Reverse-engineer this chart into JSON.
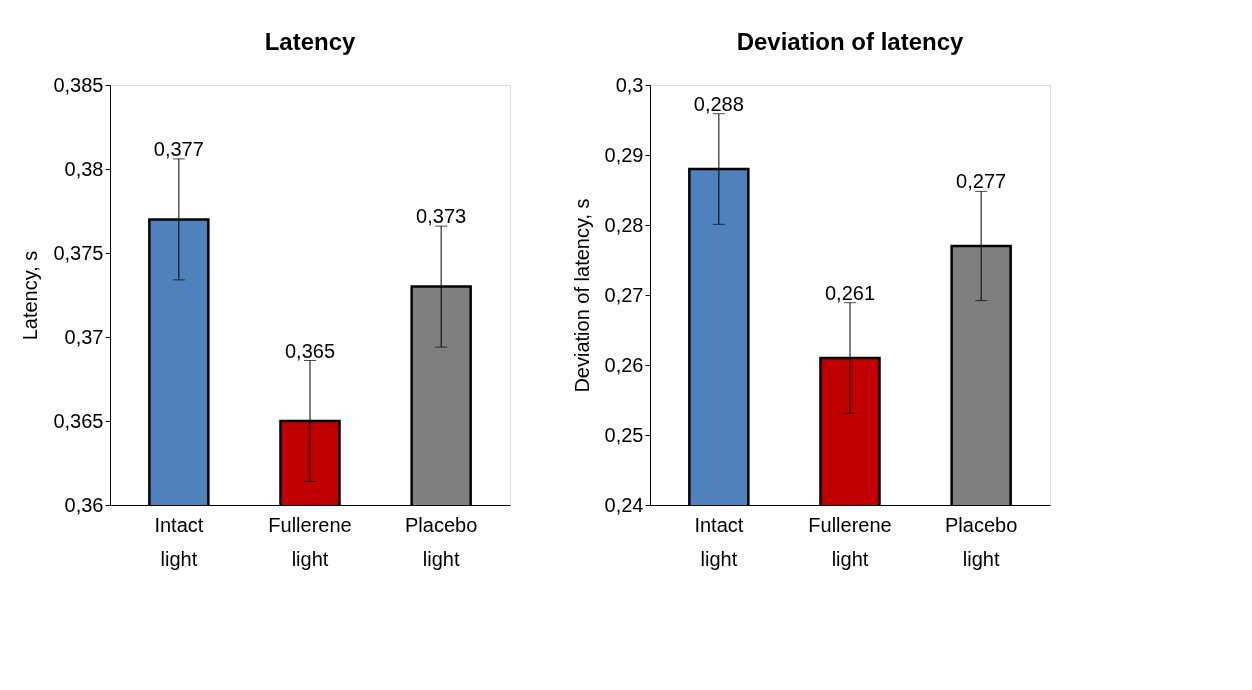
{
  "chart_data": [
    {
      "type": "bar",
      "title": "Latency",
      "ylabel": "Latency, s",
      "categories": [
        "Intact light",
        "Fullerene light",
        "Placebo light"
      ],
      "values": [
        0.377,
        0.365,
        0.373
      ],
      "colors": [
        "#4f81bd",
        "#c00000",
        "#7f7f7f"
      ],
      "errors": [
        0.0036,
        0.0036,
        0.0036
      ],
      "value_labels": [
        "0,377",
        "0,365",
        "0,373"
      ],
      "ylim": [
        0.36,
        0.385
      ],
      "yticks": [
        {
          "value": 0.36,
          "label": "0,36"
        },
        {
          "value": 0.365,
          "label": "0,365"
        },
        {
          "value": 0.37,
          "label": "0,37"
        },
        {
          "value": 0.375,
          "label": "0,375"
        },
        {
          "value": 0.38,
          "label": "0,38"
        },
        {
          "value": 0.385,
          "label": "0,385"
        }
      ],
      "grid": false
    },
    {
      "type": "bar",
      "title": "Deviation of latency",
      "ylabel": "Deviation of latency, s",
      "categories": [
        "Intact light",
        "Fullerene light",
        "Placebo light"
      ],
      "values": [
        0.288,
        0.261,
        0.277
      ],
      "colors": [
        "#4f81bd",
        "#c00000",
        "#7f7f7f"
      ],
      "errors": [
        0.0079,
        0.0079,
        0.0078
      ],
      "value_labels": [
        "0,288",
        "0,261",
        "0,277"
      ],
      "ylim": [
        0.24,
        0.3
      ],
      "yticks": [
        {
          "value": 0.24,
          "label": "0,24"
        },
        {
          "value": 0.25,
          "label": "0,25"
        },
        {
          "value": 0.26,
          "label": "0,26"
        },
        {
          "value": 0.27,
          "label": "0,27"
        },
        {
          "value": 0.28,
          "label": "0,28"
        },
        {
          "value": 0.29,
          "label": "0,29"
        },
        {
          "value": 0.3,
          "label": "0,3"
        }
      ],
      "grid": false
    }
  ]
}
